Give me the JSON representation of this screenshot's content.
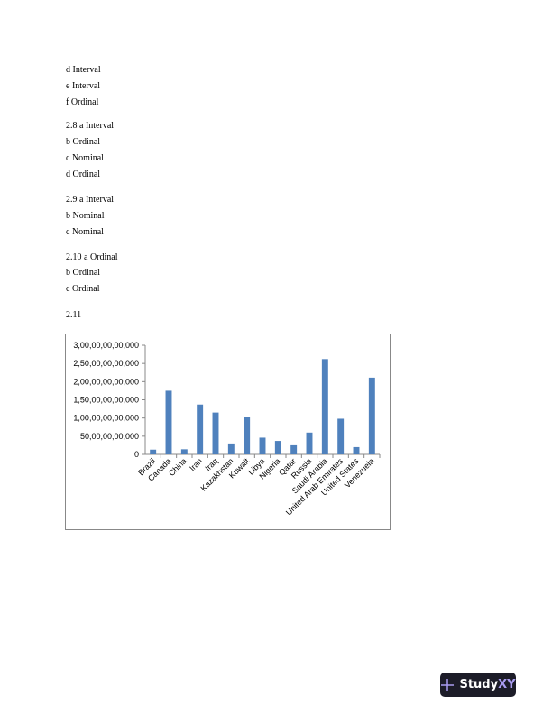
{
  "lines": [
    "d Interval",
    "e Interval",
    "f Ordinal",
    "2.8 a Interval",
    "b Ordinal",
    "c Nominal",
    "d Ordinal",
    "2.9 a Interval",
    "b Nominal",
    "c Nominal",
    "2.10 a Ordinal",
    "b Ordinal",
    "c Ordinal",
    "2.11"
  ],
  "chart_data": {
    "type": "bar",
    "categories": [
      "Brazil",
      "Canada",
      "China",
      "Iran",
      "Iraq",
      "Kazakhstan",
      "Kuwait",
      "Libya",
      "Nigeria",
      "Qatar",
      "Russia",
      "Saudi Arabia",
      "United Arab Emirates",
      "United States",
      "Venezuela"
    ],
    "values": [
      13000000000,
      175000000000,
      14000000000,
      137000000000,
      115000000000,
      30000000000,
      104000000000,
      46000000000,
      37000000000,
      25000000000,
      60000000000,
      262000000000,
      98000000000,
      20000000000,
      211000000000
    ],
    "ylim": [
      0,
      300000000000
    ],
    "yticks": [
      "0",
      "50,00,00,00,000",
      "1,00,00,00,00,000",
      "1,50,00,00,00,000",
      "2,00,00,00,00,000",
      "2,50,00,00,00,000",
      "3,00,00,00,00,000"
    ],
    "bar_color": "#4f81bd",
    "grid": false,
    "legend": "none"
  },
  "logo": {
    "text1": "Study",
    "text2": "XY"
  }
}
